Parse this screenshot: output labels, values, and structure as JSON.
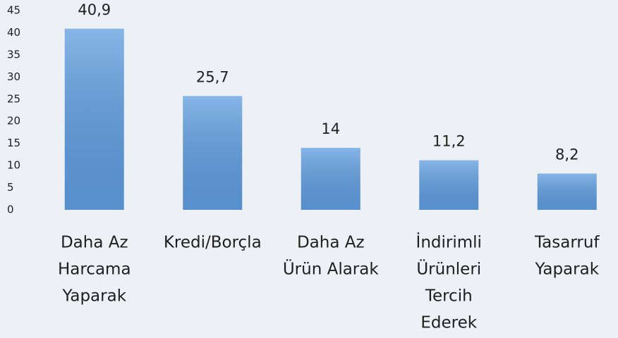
{
  "chart_data": {
    "type": "bar",
    "categories": [
      [
        "Daha Az",
        "Harcama",
        "Yaparak"
      ],
      [
        "Kredi/Borçla"
      ],
      [
        "Daha Az",
        "Ürün Alarak"
      ],
      [
        "İndirimli",
        "Ürünleri",
        "Tercih",
        "Ederek"
      ],
      [
        "Tasarruf",
        "Yaparak"
      ]
    ],
    "values": [
      40.9,
      25.7,
      14,
      11.2,
      8.2
    ],
    "value_labels": [
      "40,9",
      "25,7",
      "14",
      "11,2",
      "8,2"
    ],
    "color": "#5f9de0",
    "ylim": [
      0,
      45
    ],
    "yticks": [
      0,
      5,
      10,
      15,
      20,
      25,
      30,
      35,
      40,
      45
    ],
    "grid": false
  }
}
